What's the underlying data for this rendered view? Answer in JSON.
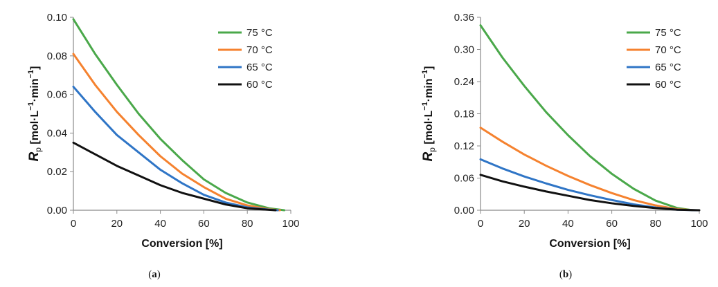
{
  "chart_data": [
    {
      "type": "line",
      "panel_label_parts": [
        "(",
        "a",
        ")"
      ],
      "xlabel": "Conversion [%]",
      "ylabel": {
        "main": "R",
        "sub": "p",
        "unit_parts": [
          "[mol·L",
          "−1",
          "·min",
          "−1",
          "]"
        ]
      },
      "xlim": [
        0,
        100
      ],
      "ylim": [
        0,
        0.1
      ],
      "xticks": [
        "0",
        "20",
        "40",
        "60",
        "80",
        "100"
      ],
      "yticks": [
        "0.00",
        "0.02",
        "0.04",
        "0.06",
        "0.08",
        "0.10"
      ],
      "legend_position": "top-right",
      "series": [
        {
          "name": "75 °C",
          "color": "#4aa84a",
          "x": [
            0,
            10,
            20,
            30,
            40,
            50,
            60,
            70,
            80,
            90,
            97
          ],
          "y": [
            0.099,
            0.081,
            0.065,
            0.05,
            0.037,
            0.026,
            0.016,
            0.009,
            0.004,
            0.001,
            0.0
          ]
        },
        {
          "name": "70 °C",
          "color": "#f5822f",
          "x": [
            0,
            10,
            20,
            30,
            40,
            50,
            60,
            70,
            80,
            90,
            95
          ],
          "y": [
            0.081,
            0.065,
            0.051,
            0.039,
            0.028,
            0.019,
            0.012,
            0.006,
            0.0025,
            0.0005,
            0.0
          ]
        },
        {
          "name": "65 °C",
          "color": "#2f75c6",
          "x": [
            0,
            10,
            20,
            30,
            40,
            50,
            60,
            70,
            80,
            90,
            94
          ],
          "y": [
            0.064,
            0.051,
            0.039,
            0.03,
            0.021,
            0.014,
            0.008,
            0.004,
            0.0015,
            0.0003,
            0.0
          ]
        },
        {
          "name": "60 °C",
          "color": "#111111",
          "x": [
            0,
            10,
            20,
            30,
            40,
            50,
            60,
            70,
            80,
            90,
            93
          ],
          "y": [
            0.035,
            0.029,
            0.023,
            0.018,
            0.013,
            0.009,
            0.006,
            0.003,
            0.001,
            0.0002,
            0.0
          ]
        }
      ]
    },
    {
      "type": "line",
      "panel_label_parts": [
        "(",
        "b",
        ")"
      ],
      "xlabel": "Conversion [%]",
      "ylabel": {
        "main": "R",
        "sub": "p",
        "unit_parts": [
          "[mol·L",
          "−1",
          "·min",
          "−1",
          "]"
        ]
      },
      "xlim": [
        0,
        100
      ],
      "ylim": [
        0,
        0.36
      ],
      "xticks": [
        "0",
        "20",
        "40",
        "60",
        "80",
        "100"
      ],
      "yticks": [
        "0.00",
        "0.06",
        "0.12",
        "0.18",
        "0.24",
        "0.30",
        "0.36"
      ],
      "legend_position": "top-right",
      "series": [
        {
          "name": "75 °C",
          "color": "#4aa84a",
          "x": [
            0,
            10,
            20,
            30,
            40,
            50,
            60,
            70,
            80,
            90,
            97
          ],
          "y": [
            0.345,
            0.285,
            0.232,
            0.183,
            0.14,
            0.101,
            0.068,
            0.04,
            0.018,
            0.004,
            0.0
          ]
        },
        {
          "name": "70 °C",
          "color": "#f5822f",
          "x": [
            0,
            10,
            20,
            30,
            40,
            50,
            60,
            70,
            80,
            90,
            98
          ],
          "y": [
            0.154,
            0.128,
            0.104,
            0.083,
            0.064,
            0.047,
            0.032,
            0.019,
            0.009,
            0.002,
            0.0
          ]
        },
        {
          "name": "65 °C",
          "color": "#2f75c6",
          "x": [
            0,
            10,
            20,
            30,
            40,
            50,
            60,
            70,
            80,
            90,
            99
          ],
          "y": [
            0.095,
            0.078,
            0.063,
            0.05,
            0.038,
            0.028,
            0.019,
            0.011,
            0.005,
            0.001,
            0.0
          ]
        },
        {
          "name": "60 °C",
          "color": "#111111",
          "x": [
            0,
            10,
            20,
            30,
            40,
            50,
            60,
            70,
            80,
            90,
            100
          ],
          "y": [
            0.066,
            0.054,
            0.044,
            0.035,
            0.027,
            0.019,
            0.013,
            0.008,
            0.004,
            0.001,
            0.0
          ]
        }
      ]
    }
  ]
}
